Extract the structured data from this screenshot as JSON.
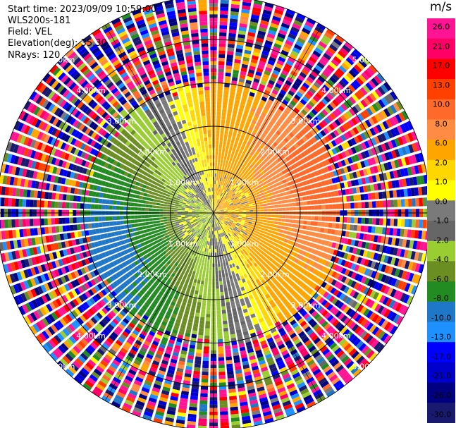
{
  "header": {
    "start_time": "Start time: 2023/09/09 10:59:00",
    "instrument": "WLS200s-181",
    "field": "Field: VEL",
    "elevation": "Elevation(deg): 35.30",
    "nrays": "NRays: 120"
  },
  "chart_data": {
    "type": "polar-ppi",
    "title": "",
    "field": "VEL",
    "units": "m/s",
    "n_rays": 120,
    "range_rings_km": [
      1.0,
      2.0,
      3.0,
      4.0,
      5.0
    ],
    "ring_labels": [
      "1.00km",
      "2.00km",
      "3.00km",
      "4.00km",
      "5.00km"
    ],
    "grid": true,
    "colorbar": {
      "title": "m/s",
      "ticks": [
        "26.0",
        "21.0",
        "17.0",
        "13.0",
        "10.0",
        "8.0",
        "6.0",
        "2.0",
        "1.0",
        "0.0",
        "-1.0",
        "-2.0",
        "-4.0",
        "-6.0",
        "-8.0",
        "-10.0",
        "-13.0",
        "-17.0",
        "-21.0",
        "-26.0",
        "-30.0"
      ],
      "colors": [
        "#ff1493",
        "#ff0066",
        "#ff0000",
        "#ff4000",
        "#ff6a2a",
        "#ff8c42",
        "#ffa500",
        "#ffd700",
        "#ffff00",
        "#7a7a7a",
        "#666666",
        "#9acd32",
        "#6b8e23",
        "#228b22",
        "#1f77c8",
        "#1e90ff",
        "#0000ff",
        "#0000cd",
        "#000080",
        "#191970"
      ]
    },
    "velocity_pattern": {
      "positive_sector_centre_azimuth_deg": 70,
      "negative_sector_centre_azimuth_deg": 250,
      "max_abs_velocity_ms": 8.0,
      "valid_range_limit_km": 3.0
    }
  }
}
